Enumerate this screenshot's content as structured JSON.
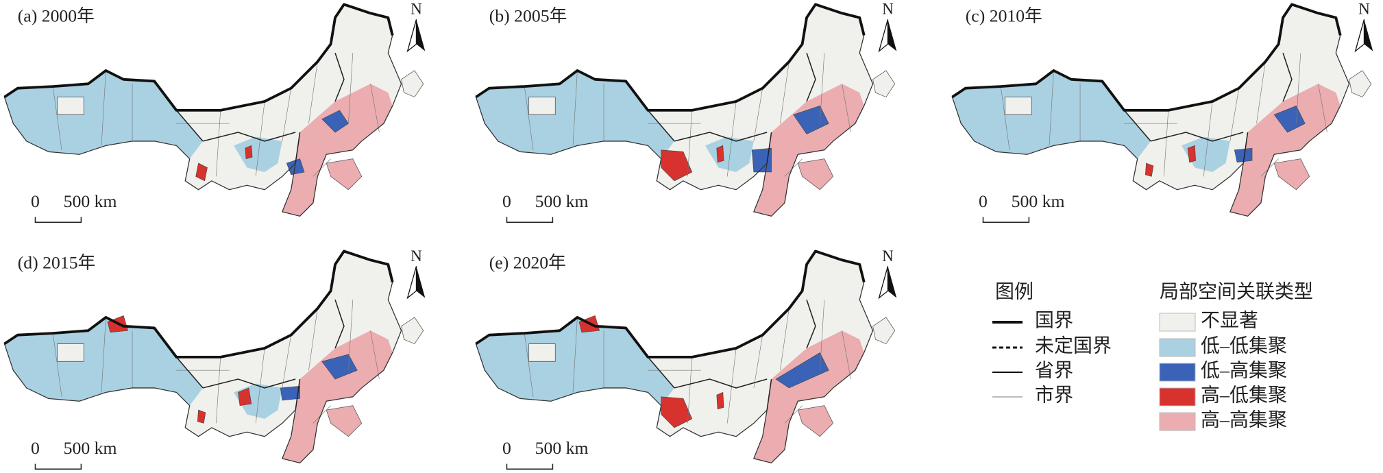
{
  "panels": [
    {
      "title": "(a) 2000年",
      "north": "N",
      "scale_labels": [
        "0",
        "500 km"
      ]
    },
    {
      "title": "(b) 2005年",
      "north": "N",
      "scale_labels": [
        "0",
        "500 km"
      ]
    },
    {
      "title": "(c) 2010年",
      "north": "N",
      "scale_labels": [
        "0",
        "500 km"
      ]
    },
    {
      "title": "(d) 2015年",
      "north": "N",
      "scale_labels": [
        "0",
        "500 km"
      ]
    },
    {
      "title": "(e) 2020年",
      "north": "N",
      "scale_labels": [
        "0",
        "500 km"
      ]
    }
  ],
  "legend": {
    "title": "图例",
    "lines": [
      "国界",
      "未定国界",
      "省界",
      "市界"
    ],
    "types_title": "局部空间关联类型",
    "types": [
      {
        "label": "不显著",
        "color": "#f0f0ec"
      },
      {
        "label": "低–低集聚",
        "color": "#a9d1e2"
      },
      {
        "label": "低–高集聚",
        "color": "#3a63b8"
      },
      {
        "label": "高–低集聚",
        "color": "#d7322e"
      },
      {
        "label": "高–高集聚",
        "color": "#ebadb0"
      }
    ]
  }
}
